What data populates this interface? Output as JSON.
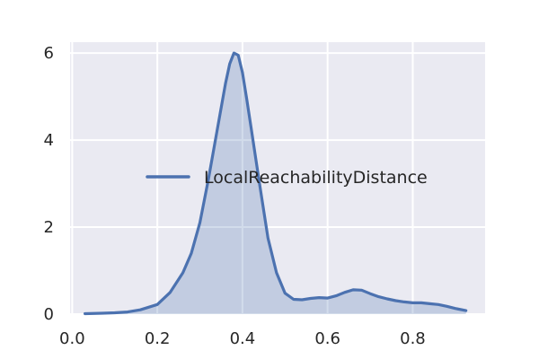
{
  "chart_data": {
    "type": "area",
    "title": "",
    "xlabel": "",
    "ylabel": "",
    "xlim": [
      -0.005,
      0.97
    ],
    "ylim": [
      0,
      6.25
    ],
    "xticks": [
      0.0,
      0.2,
      0.4,
      0.6,
      0.8
    ],
    "xtick_labels": [
      "0.0",
      "0.2",
      "0.4",
      "0.6",
      "0.8"
    ],
    "yticks": [
      0,
      2,
      4,
      6
    ],
    "ytick_labels": [
      "0",
      "2",
      "4",
      "6"
    ],
    "grid": true,
    "legend_position": "center-right",
    "colors": {
      "background": "#eaeaf2",
      "grid": "#ffffff",
      "line": "#4c72b0",
      "fill": "#4c72b0"
    },
    "series": [
      {
        "name": "LocalReachabilityDistance",
        "x": [
          0.03,
          0.07,
          0.1,
          0.13,
          0.16,
          0.2,
          0.23,
          0.26,
          0.28,
          0.3,
          0.32,
          0.34,
          0.36,
          0.37,
          0.38,
          0.39,
          0.4,
          0.41,
          0.42,
          0.44,
          0.46,
          0.48,
          0.5,
          0.52,
          0.54,
          0.56,
          0.58,
          0.6,
          0.62,
          0.64,
          0.66,
          0.68,
          0.7,
          0.72,
          0.74,
          0.76,
          0.78,
          0.8,
          0.82,
          0.84,
          0.86,
          0.88,
          0.9,
          0.925
        ],
        "y": [
          0.01,
          0.02,
          0.03,
          0.05,
          0.1,
          0.22,
          0.5,
          0.95,
          1.4,
          2.1,
          3.1,
          4.2,
          5.3,
          5.75,
          6.0,
          5.95,
          5.55,
          4.95,
          4.3,
          3.0,
          1.75,
          0.95,
          0.48,
          0.34,
          0.33,
          0.36,
          0.38,
          0.37,
          0.42,
          0.5,
          0.56,
          0.55,
          0.47,
          0.4,
          0.35,
          0.31,
          0.28,
          0.26,
          0.26,
          0.24,
          0.22,
          0.18,
          0.13,
          0.08
        ]
      }
    ]
  }
}
